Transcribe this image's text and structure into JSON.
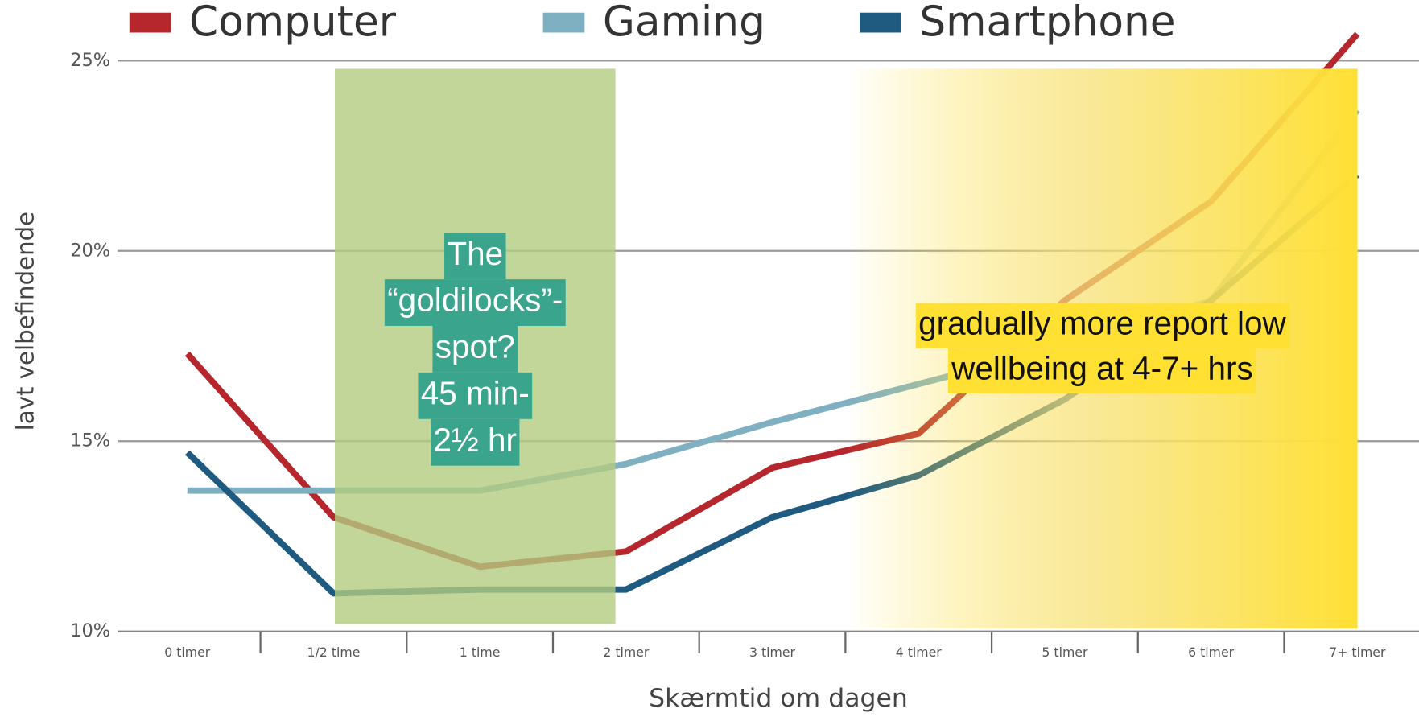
{
  "chart_data": {
    "type": "line",
    "y_label": "lavt velbefindende",
    "x_label": "Skærmtid om dagen",
    "categories": [
      "0 timer",
      "1/2 time",
      "1 time",
      "2 timer",
      "3 timer",
      "4 timer",
      "5 timer",
      "6 timer",
      "7+ timer"
    ],
    "series": [
      {
        "name": "Computer",
        "color": "#b5272d",
        "values": [
          17.3,
          13.0,
          11.7,
          12.1,
          14.3,
          15.2,
          18.7,
          21.3,
          25.7
        ]
      },
      {
        "name": "Gaming",
        "color": "#7fb0c2",
        "values": [
          13.7,
          13.7,
          13.7,
          14.4,
          15.5,
          16.5,
          17.5,
          18.7,
          23.7
        ]
      },
      {
        "name": "Smartphone",
        "color": "#1f5a80",
        "values": [
          14.7,
          11.0,
          11.1,
          11.1,
          13.0,
          14.1,
          16.1,
          18.7,
          22.0
        ]
      }
    ],
    "ylim": [
      10,
      25
    ],
    "yticks": [
      {
        "value": 10,
        "label": "10%"
      },
      {
        "value": 15,
        "label": "15%"
      },
      {
        "value": 20,
        "label": "20%"
      },
      {
        "value": 25,
        "label": "25%"
      }
    ],
    "grid": true,
    "annotations": {
      "goldilocks": [
        "The",
        "“goldilocks”-",
        "spot?",
        "45 min-",
        "2½ hr"
      ],
      "high_use": [
        "gradually more report low",
        "wellbeing at 4-7+ hrs"
      ]
    }
  }
}
